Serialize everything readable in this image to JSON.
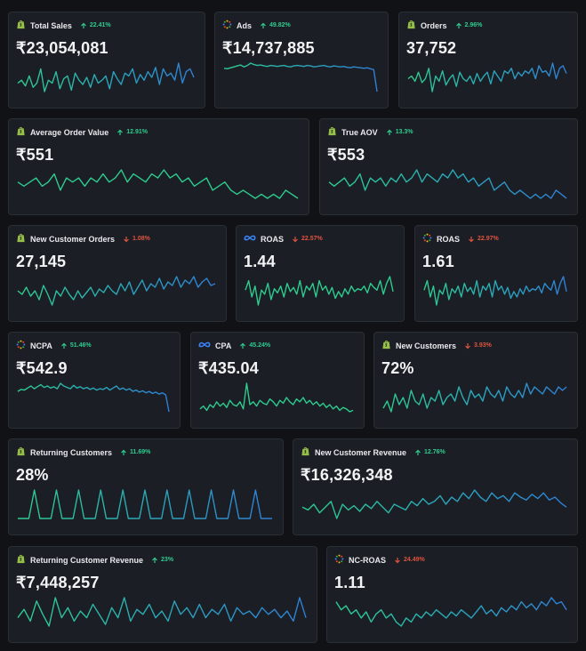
{
  "colors": {
    "green": "#2ecc8f",
    "blue": "#2f7fd6",
    "down": "#e0533f",
    "card_bg": "#1b1e24"
  },
  "cards": [
    {
      "title": "Total Sales",
      "delta": "22.41%",
      "dir": "up",
      "value": "₹23,054,081",
      "icon": "shopify-icon",
      "series": [
        50,
        52,
        48,
        55,
        47,
        50,
        60,
        44,
        52,
        50,
        58,
        46,
        53,
        55,
        45,
        57,
        52,
        49,
        54,
        47,
        56,
        50,
        52,
        55,
        46,
        58,
        53,
        49,
        57,
        55,
        60,
        50,
        56,
        52,
        58,
        54,
        61,
        49,
        60,
        55,
        57,
        52,
        64,
        50,
        58,
        60,
        54
      ]
    },
    {
      "title": "Ads",
      "delta": "49.82%",
      "dir": "up",
      "value": "₹14,737,885",
      "icon": "google-ads-icon",
      "series": [
        55,
        54,
        56,
        58,
        60,
        62,
        58,
        61,
        66,
        63,
        61,
        62,
        60,
        59,
        61,
        60,
        59,
        60,
        61,
        59,
        58,
        60,
        61,
        60,
        59,
        61,
        60,
        58,
        59,
        60,
        61,
        59,
        58,
        60,
        59,
        58,
        59,
        57,
        56,
        58,
        57,
        56,
        55,
        56,
        54,
        52,
        5
      ]
    },
    {
      "title": "Orders",
      "delta": "2.96%",
      "dir": "up",
      "value": "37,752",
      "icon": "shopify-icon",
      "series": [
        50,
        52,
        48,
        55,
        47,
        50,
        58,
        40,
        52,
        48,
        56,
        45,
        50,
        53,
        44,
        55,
        50,
        48,
        52,
        46,
        54,
        48,
        52,
        55,
        46,
        56,
        52,
        48,
        56,
        54,
        58,
        50,
        55,
        52,
        56,
        54,
        58,
        50,
        60,
        55,
        56,
        52,
        62,
        50,
        58,
        60,
        54
      ]
    },
    {
      "title": "Average Order Value",
      "delta": "12.91%",
      "dir": "up",
      "value": "₹551",
      "icon": "shopify-icon",
      "series": [
        52,
        51,
        52,
        53,
        51,
        52,
        54,
        50,
        53,
        52,
        53,
        51,
        53,
        52,
        54,
        52,
        53,
        55,
        52,
        54,
        53,
        52,
        54,
        53,
        55,
        53,
        54,
        52,
        53,
        51,
        52,
        53,
        50,
        51,
        52,
        50,
        49,
        50,
        49,
        48,
        49,
        48,
        49,
        48,
        50,
        49,
        48
      ]
    },
    {
      "title": "True AOV",
      "delta": "13.3%",
      "dir": "up",
      "value": "₹553",
      "icon": "shopify-icon",
      "series": [
        52,
        51,
        52,
        53,
        51,
        52,
        54,
        50,
        53,
        52,
        53,
        51,
        53,
        52,
        54,
        52,
        53,
        55,
        52,
        54,
        53,
        52,
        54,
        53,
        55,
        53,
        54,
        52,
        53,
        51,
        52,
        53,
        50,
        51,
        52,
        50,
        49,
        50,
        49,
        48,
        49,
        48,
        49,
        48,
        50,
        49,
        48
      ]
    },
    {
      "title": "New Customer Orders",
      "delta": "1.08%",
      "dir": "down",
      "value": "27,145",
      "icon": "shopify-icon",
      "series": [
        50,
        48,
        52,
        47,
        50,
        45,
        53,
        48,
        42,
        50,
        47,
        52,
        48,
        45,
        50,
        46,
        49,
        52,
        47,
        51,
        49,
        53,
        50,
        48,
        54,
        50,
        55,
        48,
        52,
        56,
        50,
        54,
        52,
        57,
        51,
        55,
        53,
        58,
        52,
        56,
        54,
        58,
        52,
        55,
        57,
        53,
        54
      ]
    },
    {
      "title": "ROAS",
      "delta": "22.57%",
      "dir": "down",
      "value": "1.44",
      "icon": "meta-icon",
      "series": [
        55,
        62,
        50,
        58,
        44,
        55,
        52,
        60,
        48,
        56,
        53,
        58,
        50,
        60,
        54,
        57,
        52,
        62,
        50,
        58,
        55,
        60,
        50,
        62,
        55,
        58,
        52,
        57,
        49,
        54,
        50,
        56,
        52,
        58,
        54,
        56,
        55,
        58,
        53,
        60,
        57,
        55,
        62,
        52,
        60,
        65,
        54
      ]
    },
    {
      "title": "ROAS",
      "delta": "22.97%",
      "dir": "down",
      "value": "1.61",
      "icon": "google-ads-icon",
      "series": [
        55,
        62,
        50,
        58,
        44,
        55,
        52,
        60,
        48,
        56,
        53,
        58,
        50,
        60,
        54,
        57,
        52,
        62,
        50,
        58,
        55,
        60,
        50,
        62,
        55,
        58,
        52,
        57,
        49,
        54,
        50,
        56,
        52,
        58,
        54,
        56,
        55,
        58,
        53,
        60,
        57,
        55,
        62,
        52,
        60,
        65,
        54
      ]
    },
    {
      "title": "NCPA",
      "delta": "51.46%",
      "dir": "up",
      "value": "₹542.9",
      "icon": "google-ads-icon",
      "series": [
        50,
        53,
        52,
        55,
        58,
        54,
        57,
        60,
        56,
        58,
        55,
        57,
        54,
        62,
        58,
        56,
        54,
        59,
        55,
        57,
        54,
        56,
        53,
        55,
        52,
        54,
        53,
        56,
        52,
        55,
        58,
        53,
        55,
        52,
        54,
        50,
        52,
        49,
        51,
        48,
        50,
        47,
        49,
        46,
        48,
        45,
        20
      ]
    },
    {
      "title": "CPA",
      "delta": "45.24%",
      "dir": "up",
      "value": "₹435.04",
      "icon": "meta-icon",
      "series": [
        50,
        52,
        49,
        53,
        51,
        55,
        52,
        54,
        51,
        56,
        53,
        52,
        55,
        50,
        68,
        53,
        55,
        52,
        56,
        54,
        53,
        57,
        55,
        52,
        56,
        54,
        58,
        55,
        53,
        57,
        55,
        58,
        54,
        56,
        53,
        55,
        52,
        54,
        51,
        53,
        50,
        52,
        49,
        51,
        50,
        48,
        49
      ]
    },
    {
      "title": "New Customers",
      "delta": "3.93%",
      "dir": "down",
      "value": "72%",
      "icon": "shopify-icon",
      "series": [
        52,
        54,
        51,
        56,
        53,
        55,
        52,
        57,
        54,
        53,
        56,
        52,
        55,
        54,
        57,
        53,
        55,
        56,
        54,
        58,
        55,
        53,
        57,
        55,
        56,
        54,
        58,
        56,
        55,
        57,
        54,
        58,
        56,
        55,
        57,
        55,
        59,
        56,
        58,
        57,
        56,
        58,
        57,
        56,
        58,
        57,
        58
      ]
    },
    {
      "title": "Returning Customers",
      "delta": "11.69%",
      "dir": "up",
      "value": "28%",
      "icon": "shopify-icon",
      "series": [
        50,
        50,
        50,
        51,
        50,
        50,
        50,
        51,
        50,
        50,
        50,
        51,
        50,
        50,
        50,
        51,
        50,
        50,
        50,
        51,
        50,
        50,
        50,
        51,
        50,
        50,
        50,
        51,
        50,
        50,
        50,
        51,
        50,
        50,
        50,
        51,
        50,
        50,
        50,
        51,
        50,
        50,
        50,
        51,
        50,
        50,
        50
      ]
    },
    {
      "title": "New Customer Revenue",
      "delta": "12.76%",
      "dir": "up",
      "value": "₹16,326,348",
      "icon": "shopify-icon",
      "series": [
        48,
        46,
        50,
        44,
        48,
        52,
        40,
        50,
        46,
        49,
        45,
        50,
        47,
        52,
        48,
        44,
        50,
        48,
        46,
        52,
        49,
        54,
        50,
        52,
        56,
        50,
        55,
        52,
        58,
        54,
        60,
        55,
        52,
        58,
        54,
        56,
        52,
        58,
        55,
        53,
        57,
        54,
        58,
        53,
        55,
        51,
        48
      ]
    },
    {
      "title": "Returning Customer Revenue",
      "delta": "23%",
      "dir": "up",
      "value": "₹7,448,257",
      "icon": "shopify-icon",
      "series": [
        50,
        55,
        48,
        60,
        52,
        45,
        62,
        50,
        56,
        48,
        54,
        50,
        58,
        52,
        46,
        56,
        50,
        62,
        48,
        55,
        52,
        58,
        50,
        54,
        48,
        60,
        52,
        56,
        50,
        58,
        50,
        55,
        52,
        58,
        48,
        56,
        52,
        54,
        50,
        56,
        52,
        55,
        50,
        54,
        48,
        62,
        50
      ]
    },
    {
      "title": "NC-ROAS",
      "delta": "24.49%",
      "dir": "down",
      "value": "1.11",
      "icon": "google-ads-icon",
      "series": [
        60,
        56,
        58,
        54,
        56,
        52,
        55,
        50,
        54,
        56,
        52,
        54,
        50,
        48,
        52,
        50,
        54,
        52,
        55,
        53,
        56,
        54,
        52,
        55,
        53,
        56,
        54,
        52,
        55,
        58,
        54,
        56,
        53,
        57,
        55,
        58,
        56,
        60,
        57,
        59,
        56,
        60,
        58,
        62,
        59,
        60,
        56
      ]
    }
  ]
}
